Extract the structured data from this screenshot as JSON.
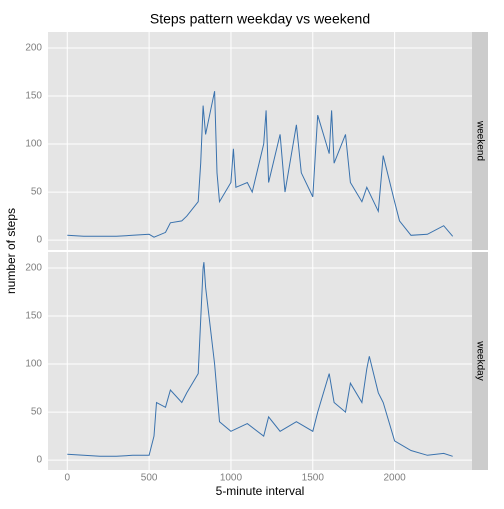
{
  "chart_data": {
    "type": "line",
    "title": "Steps pattern weekday vs weekend",
    "xlabel": "5-minute interval",
    "ylabel": "number of steps",
    "xlim": [
      -117.75,
      2472.75
    ],
    "xticks": [
      0,
      500,
      1000,
      1500,
      2000
    ],
    "ylim": [
      -10.3,
      216.6
    ],
    "yticks": [
      0,
      50,
      100,
      150,
      200
    ],
    "grid": true,
    "series": [
      {
        "name": "weekend",
        "color": "#3a72ad",
        "x": [
          0,
          100,
          200,
          300,
          400,
          500,
          530,
          600,
          630,
          700,
          730,
          800,
          815,
          830,
          845,
          900,
          915,
          930,
          1000,
          1015,
          1030,
          1100,
          1130,
          1200,
          1215,
          1230,
          1300,
          1330,
          1400,
          1430,
          1500,
          1530,
          1600,
          1615,
          1630,
          1700,
          1730,
          1800,
          1830,
          1900,
          1930,
          2000,
          2030,
          2100,
          2200,
          2300,
          2355
        ],
        "values": [
          5,
          4,
          4,
          4,
          5,
          6,
          3,
          8,
          18,
          20,
          25,
          40,
          80,
          140,
          110,
          155,
          70,
          40,
          60,
          95,
          55,
          60,
          50,
          100,
          135,
          60,
          110,
          50,
          120,
          70,
          45,
          130,
          90,
          135,
          80,
          110,
          60,
          40,
          55,
          30,
          88,
          40,
          20,
          5,
          6,
          15,
          4
        ]
      },
      {
        "name": "weekday",
        "color": "#3a72ad",
        "x": [
          0,
          100,
          200,
          300,
          400,
          500,
          530,
          545,
          600,
          630,
          700,
          730,
          800,
          830,
          835,
          845,
          900,
          930,
          1000,
          1100,
          1200,
          1230,
          1300,
          1400,
          1500,
          1530,
          1600,
          1630,
          1700,
          1730,
          1800,
          1830,
          1845,
          1900,
          1930,
          2000,
          2100,
          2200,
          2300,
          2355
        ],
        "values": [
          6,
          5,
          4,
          4,
          5,
          5,
          25,
          60,
          55,
          73,
          60,
          70,
          90,
          200,
          206,
          180,
          100,
          40,
          30,
          38,
          25,
          45,
          30,
          40,
          30,
          50,
          90,
          60,
          50,
          80,
          60,
          95,
          108,
          70,
          60,
          20,
          10,
          5,
          7,
          4
        ]
      }
    ]
  }
}
